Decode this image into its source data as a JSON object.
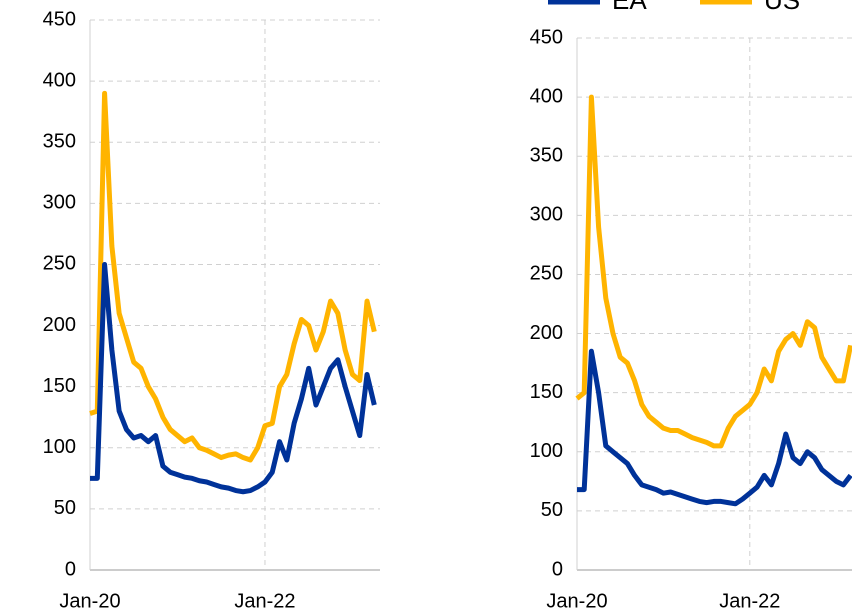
{
  "chart_data": [
    {
      "type": "line",
      "categories": [
        "Jan-20",
        null,
        null,
        null,
        null,
        null,
        null,
        null,
        null,
        null,
        null,
        null,
        null,
        null,
        null,
        null,
        null,
        null,
        null,
        null,
        null,
        null,
        null,
        null,
        "Jan-22",
        null,
        null,
        null,
        null,
        null,
        null,
        null,
        null,
        null,
        null,
        null,
        null,
        null,
        null,
        null
      ],
      "series": [
        {
          "color": "#FFB400",
          "values": [
            128,
            130,
            390,
            265,
            210,
            190,
            170,
            165,
            150,
            140,
            125,
            115,
            110,
            105,
            108,
            100,
            98,
            95,
            92,
            94,
            95,
            92,
            90,
            100,
            118,
            120,
            150,
            160,
            185,
            205,
            200,
            180,
            195,
            220,
            210,
            180,
            160,
            155,
            220,
            195
          ]
        },
        {
          "color": "#003299",
          "values": [
            75,
            75,
            250,
            180,
            130,
            115,
            108,
            110,
            105,
            110,
            85,
            80,
            78,
            76,
            75,
            73,
            72,
            70,
            68,
            67,
            65,
            64,
            65,
            68,
            72,
            80,
            105,
            90,
            120,
            140,
            165,
            135,
            150,
            165,
            172,
            150,
            130,
            110,
            160,
            135
          ]
        }
      ],
      "ylim": [
        0,
        450
      ],
      "yticks": [
        0,
        50,
        100,
        150,
        200,
        250,
        300,
        350,
        400,
        450
      ],
      "grid": true
    },
    {
      "type": "line",
      "categories": [
        "Jan-20",
        null,
        null,
        null,
        null,
        null,
        null,
        null,
        null,
        null,
        null,
        null,
        null,
        null,
        null,
        null,
        null,
        null,
        null,
        null,
        null,
        null,
        null,
        null,
        "Jan-22",
        null,
        null,
        null,
        null,
        null,
        null,
        null,
        null,
        null,
        null,
        null,
        null,
        null,
        null
      ],
      "series": [
        {
          "name": "US",
          "color": "#FFB400",
          "values": [
            145,
            150,
            400,
            290,
            230,
            200,
            180,
            175,
            160,
            140,
            130,
            125,
            120,
            118,
            118,
            115,
            112,
            110,
            108,
            105,
            105,
            120,
            130,
            135,
            140,
            150,
            170,
            160,
            185,
            195,
            200,
            190,
            210,
            205,
            180,
            170,
            160,
            160,
            190
          ]
        },
        {
          "name": "EA",
          "color": "#003299",
          "values": [
            68,
            68,
            185,
            150,
            105,
            100,
            95,
            90,
            80,
            72,
            70,
            68,
            65,
            66,
            64,
            62,
            60,
            58,
            57,
            58,
            58,
            57,
            56,
            60,
            65,
            70,
            80,
            72,
            90,
            115,
            95,
            90,
            100,
            95,
            85,
            80,
            75,
            72,
            80
          ]
        }
      ],
      "ylim": [
        0,
        450
      ],
      "yticks": [
        0,
        50,
        100,
        150,
        200,
        250,
        300,
        350,
        400,
        450
      ],
      "grid": true
    }
  ]
}
